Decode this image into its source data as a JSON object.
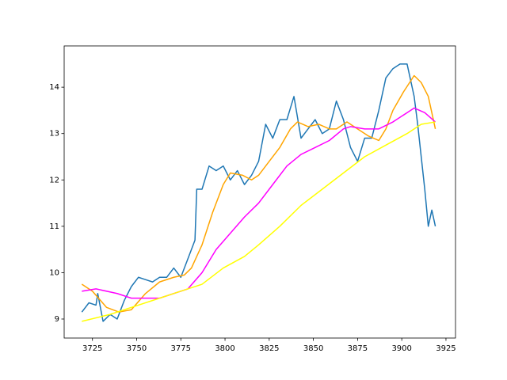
{
  "chart_data": {
    "type": "line",
    "xlim": [
      3709,
      3930.4
    ],
    "ylim": [
      8.59,
      14.89
    ],
    "xticks": [
      3725,
      3750,
      3775,
      3800,
      3825,
      3850,
      3875,
      3900,
      3925
    ],
    "yticks": [
      9,
      10,
      11,
      12,
      13,
      14
    ],
    "series": [
      {
        "color": "#1f77b4",
        "x": [
          3719,
          3723,
          3727,
          3728,
          3731,
          3735,
          3739,
          3743,
          3747,
          3751,
          3755,
          3759,
          3763,
          3767,
          3771,
          3775,
          3779,
          3783,
          3784,
          3787,
          3791,
          3795,
          3799,
          3803,
          3807,
          3811,
          3815,
          3819,
          3823,
          3827,
          3831,
          3835,
          3839,
          3843,
          3847,
          3851,
          3855,
          3859,
          3863,
          3867,
          3871,
          3875,
          3879,
          3883,
          3887,
          3891,
          3895,
          3899,
          3903,
          3907,
          3909,
          3911,
          3913,
          3915,
          3917,
          3919
        ],
        "values": [
          9.15,
          9.35,
          9.3,
          9.55,
          8.95,
          9.1,
          9.0,
          9.4,
          9.7,
          9.9,
          9.85,
          9.8,
          9.9,
          9.9,
          10.1,
          9.9,
          10.3,
          10.7,
          11.8,
          11.8,
          12.3,
          12.2,
          12.3,
          12.0,
          12.2,
          11.9,
          12.1,
          12.4,
          13.2,
          12.9,
          13.3,
          13.3,
          13.8,
          12.9,
          13.1,
          13.3,
          13.0,
          13.1,
          13.7,
          13.3,
          12.7,
          12.4,
          12.9,
          12.9,
          13.5,
          14.2,
          14.4,
          14.5,
          14.5,
          13.8,
          13.2,
          12.5,
          11.8,
          11.0,
          11.35,
          11.0
        ]
      },
      {
        "color": "#ffa500",
        "x": [
          3719,
          3725,
          3733,
          3740,
          3747,
          3755,
          3763,
          3771,
          3777,
          3781,
          3787,
          3793,
          3799,
          3803,
          3810,
          3815,
          3819,
          3825,
          3831,
          3837,
          3841,
          3847,
          3853,
          3859,
          3863,
          3869,
          3875,
          3881,
          3887,
          3891,
          3895,
          3901,
          3907,
          3911,
          3915,
          3919
        ],
        "values": [
          9.75,
          9.6,
          9.25,
          9.15,
          9.2,
          9.55,
          9.8,
          9.9,
          9.95,
          10.1,
          10.6,
          11.3,
          11.9,
          12.15,
          12.1,
          12.0,
          12.1,
          12.4,
          12.7,
          13.1,
          13.25,
          13.15,
          13.2,
          13.1,
          13.1,
          13.25,
          13.1,
          12.95,
          12.85,
          13.1,
          13.5,
          13.9,
          14.25,
          14.1,
          13.8,
          13.1
        ]
      },
      {
        "color": "#ff00ff",
        "x": [
          3719,
          3727,
          3739,
          3747,
          3763,
          3771,
          3779,
          3787,
          3795,
          3803,
          3811,
          3819,
          3827,
          3835,
          3843,
          3851,
          3859,
          3867,
          3871,
          3879,
          3887,
          3895,
          3903,
          3907,
          3913,
          3919
        ],
        "values": [
          9.6,
          9.65,
          9.55,
          9.45,
          9.45,
          9.55,
          9.65,
          10.0,
          10.5,
          10.85,
          11.2,
          11.5,
          11.9,
          12.3,
          12.55,
          12.7,
          12.85,
          13.1,
          13.15,
          13.1,
          13.1,
          13.25,
          13.45,
          13.55,
          13.45,
          13.25
        ]
      },
      {
        "color": "#ffff00",
        "x": [
          3719,
          3735,
          3747,
          3763,
          3775,
          3787,
          3799,
          3811,
          3819,
          3831,
          3843,
          3855,
          3867,
          3879,
          3891,
          3903,
          3911,
          3919
        ],
        "values": [
          8.95,
          9.1,
          9.25,
          9.45,
          9.6,
          9.75,
          10.1,
          10.35,
          10.6,
          11.0,
          11.45,
          11.8,
          12.15,
          12.5,
          12.75,
          13.0,
          13.2,
          13.25
        ]
      }
    ]
  }
}
